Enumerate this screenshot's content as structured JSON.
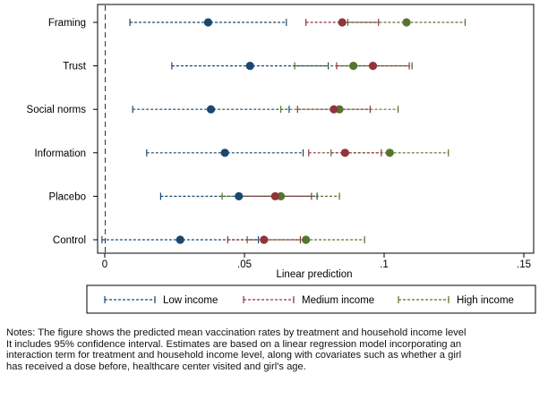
{
  "chart_data": {
    "type": "scatter",
    "subtype": "coefficient-plot-with-confidence-intervals",
    "orientation": "horizontal",
    "categories": [
      "Framing",
      "Trust",
      "Social norms",
      "Information",
      "Placebo",
      "Control"
    ],
    "xlabel": "Linear prediction",
    "xlim": [
      0,
      0.15
    ],
    "xticks": [
      0,
      0.05,
      0.1,
      0.15
    ],
    "xtick_labels": [
      "0",
      ".05",
      ".1",
      ".15"
    ],
    "reference_line": {
      "x": 0,
      "style": "dashed"
    },
    "grid": false,
    "legend_position": "bottom",
    "series": [
      {
        "name": "Low income",
        "color": "#1a476f",
        "estimate": [
          0.037,
          0.052,
          0.038,
          0.043,
          0.048,
          0.027
        ],
        "ci_low": [
          0.009,
          0.024,
          0.01,
          0.015,
          0.02,
          -0.001
        ],
        "ci_high": [
          0.065,
          0.08,
          0.066,
          0.071,
          0.076,
          0.055
        ]
      },
      {
        "name": "Medium income",
        "color": "#90353b",
        "estimate": [
          0.085,
          0.096,
          0.082,
          0.086,
          0.061,
          0.057
        ],
        "ci_low": [
          0.072,
          0.083,
          0.069,
          0.073,
          0.048,
          0.044
        ],
        "ci_high": [
          0.098,
          0.109,
          0.095,
          0.099,
          0.074,
          0.07
        ]
      },
      {
        "name": "High income",
        "color": "#55752f",
        "estimate": [
          0.108,
          0.089,
          0.084,
          0.102,
          0.063,
          0.072
        ],
        "ci_low": [
          0.087,
          0.068,
          0.063,
          0.081,
          0.042,
          0.051
        ],
        "ci_high": [
          0.129,
          0.11,
          0.105,
          0.123,
          0.084,
          0.093
        ]
      }
    ]
  },
  "notes": [
    "Notes: The figure shows the predicted mean vaccination rates by treatment and household income level",
    "It includes 95% confidence interval. Estimates are based on a linear regression model incorporating an",
    "interaction term for treatment and household income level, along with covariates such as whether a girl",
    "has received a dose before, healthcare center visited and girl's age."
  ]
}
